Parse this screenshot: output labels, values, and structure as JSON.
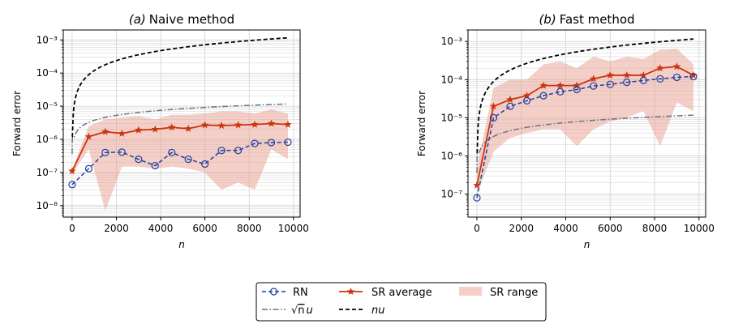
{
  "chart_data": [
    {
      "type": "line",
      "title_prefix": "(a)",
      "title": "Naive method",
      "xlabel": "n",
      "ylabel": "Forward error",
      "xlim": [
        -400,
        10300
      ],
      "ylim": [
        4.5e-09,
        0.002
      ],
      "yscale": "log",
      "grid": true,
      "x_ticks": [
        0,
        2000,
        4000,
        6000,
        8000,
        10000
      ],
      "x_tick_labels": [
        "0",
        "2000",
        "4000",
        "6000",
        "8000",
        "10000"
      ],
      "y_ticks": [
        1e-08,
        1e-07,
        1e-06,
        1e-05,
        0.0001,
        0.001
      ],
      "y_tick_labels": [
        "10⁻⁸",
        "10⁻⁷",
        "10⁻⁶",
        "10⁻⁵",
        "10⁻⁴",
        "10⁻³"
      ],
      "x": [
        0,
        750,
        1500,
        2250,
        3000,
        3750,
        4500,
        5250,
        6000,
        6750,
        7500,
        8250,
        9000,
        9750
      ],
      "series": [
        {
          "name": "RN",
          "values": [
            4.3e-08,
            1.3e-07,
            4e-07,
            4.1e-07,
            2.5e-07,
            1.6e-07,
            4e-07,
            2.5e-07,
            1.8e-07,
            4.6e-07,
            4.6e-07,
            7.5e-07,
            8e-07,
            8.2e-07
          ]
        },
        {
          "name": "SR average",
          "values": [
            1.1e-07,
            1.2e-06,
            1.7e-06,
            1.5e-06,
            1.9e-06,
            2e-06,
            2.3e-06,
            2.1e-06,
            2.7e-06,
            2.6e-06,
            2.7e-06,
            2.8e-06,
            3e-06,
            2.8e-06
          ]
        },
        {
          "name": "SR range",
          "lower": [
            9e-08,
            5e-07,
            7e-09,
            1.5e-07,
            1.5e-07,
            1.3e-07,
            1.5e-07,
            1.3e-07,
            1e-07,
            3e-08,
            5e-08,
            3e-08,
            5e-07,
            2.5e-07
          ],
          "upper": [
            1.2e-07,
            2.5e-06,
            4e-06,
            4.5e-06,
            5e-06,
            4e-06,
            5.5e-06,
            5.5e-06,
            6e-06,
            7e-06,
            7e-06,
            6e-06,
            8e-06,
            6e-06
          ]
        },
        {
          "name": "√n u",
          "values": [
            1.2e-06,
            3.2e-06,
            4.6e-06,
            5.6e-06,
            6.5e-06,
            7.2e-06,
            7.9e-06,
            8.5e-06,
            9.1e-06,
            9.7e-06,
            1.02e-05,
            1.07e-05,
            1.12e-05,
            1.17e-05
          ]
        },
        {
          "name": "nu",
          "values": [
            1.2e-06,
            8.9e-05,
            0.00018,
            0.00027,
            0.00036,
            0.00045,
            0.00054,
            0.00063,
            0.00072,
            0.0008,
            0.00089,
            0.00098,
            0.00107,
            0.00116
          ]
        }
      ]
    },
    {
      "type": "line",
      "title_prefix": "(b)",
      "title": "Fast method",
      "xlabel": "n",
      "ylabel": "Forward error",
      "xlim": [
        -400,
        10300
      ],
      "ylim": [
        2.5e-08,
        0.002
      ],
      "yscale": "log",
      "grid": true,
      "x_ticks": [
        0,
        2000,
        4000,
        6000,
        8000,
        10000
      ],
      "x_tick_labels": [
        "0",
        "2000",
        "4000",
        "6000",
        "8000",
        "10000"
      ],
      "y_ticks": [
        1e-07,
        1e-06,
        1e-05,
        0.0001,
        0.001
      ],
      "y_tick_labels": [
        "10⁻⁷",
        "10⁻⁶",
        "10⁻⁵",
        "10⁻⁴",
        "10⁻³"
      ],
      "x": [
        0,
        750,
        1500,
        2250,
        3000,
        3750,
        4500,
        5250,
        6000,
        6750,
        7500,
        8250,
        9000,
        9750
      ],
      "series": [
        {
          "name": "RN",
          "values": [
            8e-08,
            1e-05,
            2e-05,
            2.8e-05,
            3.8e-05,
            4.8e-05,
            5.5e-05,
            6.8e-05,
            7.5e-05,
            8.5e-05,
            9.5e-05,
            0.000105,
            0.000115,
            0.00012
          ]
        },
        {
          "name": "SR average",
          "values": [
            1.7e-07,
            2e-05,
            3e-05,
            3.8e-05,
            7e-05,
            7e-05,
            7e-05,
            0.000105,
            0.00013,
            0.00013,
            0.00013,
            0.0002,
            0.00022,
            0.00013
          ]
        },
        {
          "name": "SR range",
          "lower": [
            1e-07,
            1.3e-06,
            3e-06,
            4e-06,
            5e-06,
            5e-06,
            1.8e-06,
            5e-06,
            8e-06,
            1e-05,
            1.5e-05,
            1.8e-06,
            2.5e-05,
            1.5e-05
          ],
          "upper": [
            5e-07,
            6e-05,
            0.0001,
            0.0001,
            0.00025,
            0.0003,
            0.0002,
            0.0004,
            0.0003,
            0.0004,
            0.00035,
            0.0006,
            0.00065,
            0.00025
          ]
        },
        {
          "name": "√n u",
          "values": [
            1.2e-06,
            3.2e-06,
            4.6e-06,
            5.6e-06,
            6.5e-06,
            7.2e-06,
            7.9e-06,
            8.5e-06,
            9.1e-06,
            9.7e-06,
            1.02e-05,
            1.07e-05,
            1.12e-05,
            1.17e-05
          ]
        },
        {
          "name": "nu",
          "values": [
            1.2e-06,
            8.9e-05,
            0.00018,
            0.00027,
            0.00036,
            0.00045,
            0.00054,
            0.00063,
            0.00072,
            0.0008,
            0.00089,
            0.00098,
            0.00107,
            0.00116
          ]
        }
      ]
    }
  ],
  "legend": {
    "placement": "bottom-center",
    "items": [
      {
        "key": "rn",
        "label": "RN"
      },
      {
        "key": "sr_avg",
        "label": "SR average"
      },
      {
        "key": "sr_range",
        "label": "SR range"
      },
      {
        "key": "sqrt",
        "label_sqrt": "√",
        "label_n": "n",
        "label_u": "u"
      },
      {
        "key": "nu",
        "label": "nu"
      }
    ]
  },
  "colors": {
    "rn": "#1f3ea3",
    "sr": "#cc3311",
    "sr_fill": "#e8a090",
    "sqrt_nu": "#6e7384",
    "nu": "#000000",
    "grid": "#d0d0d0"
  }
}
